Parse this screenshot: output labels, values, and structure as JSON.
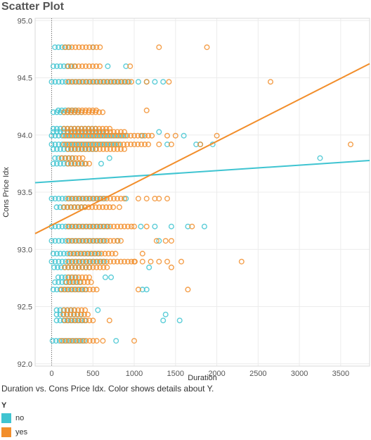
{
  "page_title": "Scatter Plot",
  "caption": "Duration vs. Cons Price Idx.  Color shows details about Y.",
  "legend": {
    "title": "Y",
    "items": [
      {
        "label": "no",
        "color": "#3fc4d1"
      },
      {
        "label": "yes",
        "color": "#f28e2b"
      }
    ]
  },
  "chart_data": {
    "type": "scatter",
    "xlabel": "Duration",
    "ylabel": "Cons Price Idx",
    "xlim": [
      -200,
      3850
    ],
    "ylim": [
      91.98,
      95.02
    ],
    "x_ticks": [
      0,
      500,
      1000,
      1500,
      2000,
      2500,
      3000,
      3500
    ],
    "y_ticks": [
      92.0,
      92.5,
      93.0,
      93.5,
      94.0,
      94.5,
      95.0
    ],
    "y_tick_labels": [
      "92.0",
      "92.5",
      "93.0",
      "93.5",
      "94.0",
      "94.5",
      "95.0"
    ],
    "grid": true,
    "price_levels": [
      92.201,
      92.379,
      92.431,
      92.469,
      92.649,
      92.713,
      92.756,
      92.843,
      92.893,
      92.963,
      93.075,
      93.2,
      93.369,
      93.444,
      93.749,
      93.798,
      93.876,
      93.918,
      93.994,
      94.027,
      94.055,
      94.199,
      94.215,
      94.465,
      94.601,
      94.767
    ],
    "series": [
      {
        "name": "no",
        "color": "#3fc4d1",
        "clusters": [
          [
            92.201,
            10,
            420
          ],
          [
            92.379,
            60,
            420
          ],
          [
            92.431,
            60,
            380
          ],
          [
            92.469,
            60,
            310
          ],
          [
            92.649,
            20,
            420
          ],
          [
            92.713,
            40,
            380
          ],
          [
            92.756,
            80,
            330
          ],
          [
            92.843,
            30,
            480
          ],
          [
            92.893,
            0,
            650
          ],
          [
            92.963,
            20,
            600
          ],
          [
            93.075,
            0,
            650
          ],
          [
            93.2,
            0,
            700
          ],
          [
            93.369,
            60,
            420
          ],
          [
            93.444,
            0,
            650
          ],
          [
            93.749,
            20,
            420
          ],
          [
            93.798,
            40,
            260
          ],
          [
            93.876,
            20,
            560
          ],
          [
            93.918,
            0,
            850
          ],
          [
            93.994,
            0,
            900
          ],
          [
            94.027,
            20,
            700
          ],
          [
            94.055,
            20,
            560
          ],
          [
            94.199,
            20,
            380
          ],
          [
            94.215,
            80,
            300
          ],
          [
            94.465,
            0,
            950
          ],
          [
            94.601,
            20,
            310
          ],
          [
            94.767,
            40,
            250
          ]
        ],
        "points": [
          [
            1550,
            92.379
          ],
          [
            1380,
            92.431
          ],
          [
            1350,
            92.379
          ],
          [
            780,
            92.201
          ],
          [
            560,
            92.469
          ],
          [
            650,
            92.756
          ],
          [
            720,
            92.756
          ],
          [
            1100,
            92.649
          ],
          [
            1150,
            92.649
          ],
          [
            1180,
            92.843
          ],
          [
            800,
            93.075
          ],
          [
            1300,
            93.075
          ],
          [
            1850,
            93.2
          ],
          [
            1450,
            93.2
          ],
          [
            1650,
            93.2
          ],
          [
            1250,
            93.2
          ],
          [
            1080,
            93.2
          ],
          [
            900,
            93.444
          ],
          [
            600,
            93.749
          ],
          [
            700,
            93.798
          ],
          [
            1800,
            93.918
          ],
          [
            1950,
            93.918
          ],
          [
            1600,
            93.994
          ],
          [
            1100,
            93.994
          ],
          [
            1300,
            94.027
          ],
          [
            3250,
            93.798
          ],
          [
            1350,
            94.465
          ],
          [
            1250,
            94.465
          ],
          [
            1150,
            94.465
          ],
          [
            1050,
            94.465
          ],
          [
            900,
            94.601
          ],
          [
            680,
            94.601
          ],
          [
            500,
            94.767
          ],
          [
            1400,
            93.918
          ],
          [
            1750,
            93.918
          ]
        ],
        "trend": {
          "x": [
            -200,
            3850
          ],
          "y": [
            93.583,
            93.777
          ]
        }
      },
      {
        "name": "yes",
        "color": "#f28e2b",
        "clusters": [
          [
            92.201,
            120,
            560
          ],
          [
            92.379,
            160,
            520
          ],
          [
            92.431,
            140,
            480
          ],
          [
            92.469,
            150,
            420
          ],
          [
            92.649,
            120,
            560
          ],
          [
            92.713,
            180,
            480
          ],
          [
            92.756,
            200,
            470
          ],
          [
            92.843,
            160,
            700
          ],
          [
            92.893,
            200,
            1050
          ],
          [
            92.963,
            220,
            780
          ],
          [
            93.075,
            200,
            860
          ],
          [
            93.2,
            200,
            1000
          ],
          [
            93.369,
            150,
            760
          ],
          [
            93.444,
            200,
            900
          ],
          [
            93.749,
            200,
            480
          ],
          [
            93.798,
            120,
            390
          ],
          [
            93.876,
            200,
            900
          ],
          [
            93.918,
            150,
            1200
          ],
          [
            93.994,
            150,
            1220
          ],
          [
            94.027,
            200,
            900
          ],
          [
            94.055,
            150,
            720
          ],
          [
            94.199,
            150,
            650
          ],
          [
            94.215,
            200,
            560
          ],
          [
            94.465,
            200,
            1000
          ],
          [
            94.601,
            200,
            600
          ],
          [
            94.767,
            160,
            600
          ]
        ],
        "points": [
          [
            3620,
            93.918
          ],
          [
            2650,
            94.465
          ],
          [
            1880,
            94.767
          ],
          [
            2300,
            92.893
          ],
          [
            1570,
            92.893
          ],
          [
            1450,
            92.843
          ],
          [
            1650,
            92.649
          ],
          [
            1000,
            92.201
          ],
          [
            1300,
            93.444
          ],
          [
            1250,
            93.444
          ],
          [
            1150,
            93.444
          ],
          [
            1050,
            93.444
          ],
          [
            1400,
            93.444
          ],
          [
            1380,
            93.075
          ],
          [
            1200,
            92.893
          ],
          [
            1000,
            92.893
          ],
          [
            1100,
            92.893
          ],
          [
            1300,
            92.893
          ],
          [
            1400,
            92.893
          ],
          [
            1100,
            92.963
          ],
          [
            1000,
            93.2
          ],
          [
            1150,
            93.2
          ],
          [
            1400,
            93.994
          ],
          [
            1500,
            93.994
          ],
          [
            1300,
            93.918
          ],
          [
            1450,
            93.918
          ],
          [
            2000,
            93.994
          ],
          [
            1800,
            93.918
          ],
          [
            1420,
            94.465
          ],
          [
            1150,
            94.465
          ],
          [
            1150,
            94.215
          ],
          [
            950,
            94.601
          ],
          [
            1300,
            94.767
          ],
          [
            1700,
            93.2
          ],
          [
            1450,
            93.075
          ],
          [
            1050,
            92.649
          ],
          [
            1270,
            93.075
          ],
          [
            700,
            92.379
          ],
          [
            620,
            92.201
          ],
          [
            820,
            93.369
          ]
        ],
        "trend": {
          "x": [
            -200,
            3850
          ],
          "y": [
            93.138,
            94.623
          ]
        }
      }
    ]
  }
}
